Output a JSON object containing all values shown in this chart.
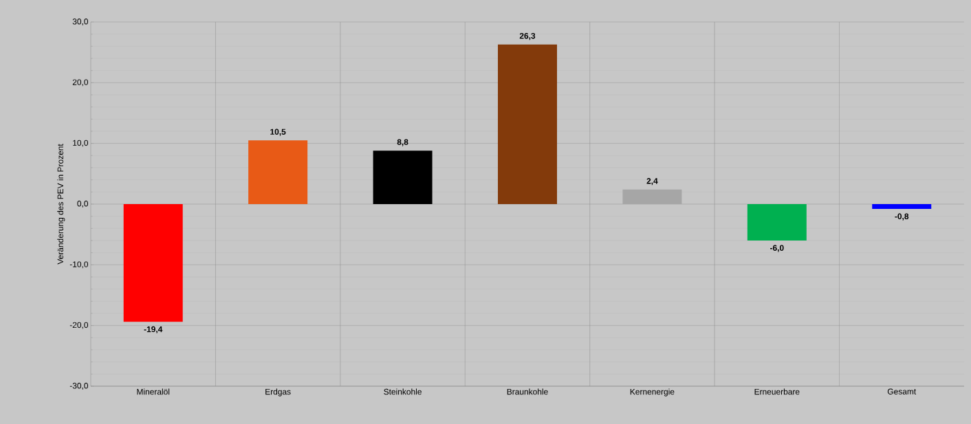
{
  "chart_data": {
    "type": "bar",
    "ylabel": "Veränderung des PEV in Prozent",
    "categories": [
      "Mineralöl",
      "Erdgas",
      "Steinkohle",
      "Braunkohle",
      "Kernenergie",
      "Erneuerbare",
      "Gesamt"
    ],
    "values": [
      -19.4,
      10.5,
      8.8,
      26.3,
      2.4,
      -6.0,
      -0.8
    ],
    "colors": [
      "#ff0000",
      "#e85a16",
      "#000000",
      "#833a0b",
      "#a6a6a6",
      "#00b050",
      "#0000ff"
    ],
    "value_labels": [
      "-19,4",
      "10,5",
      "8,8",
      "26,3",
      "2,4",
      "-6,0",
      "-0,8"
    ],
    "ylim": [
      -30,
      30
    ],
    "yticks": [
      {
        "value": -30,
        "label": "-30,0"
      },
      {
        "value": -20,
        "label": "-20,0"
      },
      {
        "value": -10,
        "label": "-10,0"
      },
      {
        "value": 0,
        "label": "0,0"
      },
      {
        "value": 10,
        "label": "10,0"
      },
      {
        "value": 20,
        "label": "20,0"
      },
      {
        "value": 30,
        "label": "30,0"
      }
    ],
    "grid": true
  }
}
